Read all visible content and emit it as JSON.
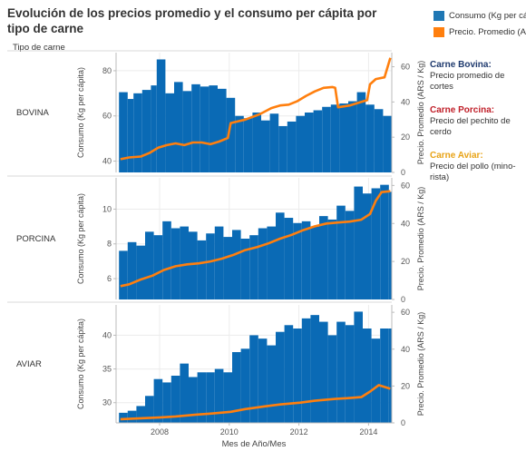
{
  "title": "Evolución de los precios promedio y el consumo per cápita por tipo de carne",
  "row_header": "Tipo de carne",
  "legend": {
    "items": [
      {
        "label": "Consumo (Kg per cá..",
        "color": "#1f77b4"
      },
      {
        "label": "Precio. Promedio (A..",
        "color": "#ff7f0e"
      }
    ]
  },
  "notes": [
    {
      "title": "Carne Bovina:",
      "title_color": "#1f3a6e",
      "text": "Precio promedio de cortes"
    },
    {
      "title": "Carne Porcina:",
      "title_color": "#c0202a",
      "text": "Precio del pechito de cerdo"
    },
    {
      "title": "Carne Aviar:",
      "title_color": "#e8a317",
      "text": "Precio del pollo (mino-rista)"
    }
  ],
  "chart_data": {
    "type": "bar+line",
    "xlabel": "Mes de Año/Mes",
    "x_ticks": [
      "2008",
      "2010",
      "2012",
      "2014"
    ],
    "x_range": [
      "2006-10",
      "2014-08"
    ],
    "y_left_label": "Consumo (Kg per cápita)",
    "y_right_label": "Precio. Promedio (ARS / Kg)",
    "bar_color": "#0a6ab5",
    "line_color": "#ff7f0e",
    "panels": [
      {
        "name": "BOVINA",
        "ylim": [
          35,
          88
        ],
        "y_ticks": [
          40,
          60,
          80
        ],
        "y2lim": [
          0,
          68
        ],
        "y2_ticks": [
          0,
          20,
          40,
          60
        ],
        "consumo": [
          [
            "2006-11",
            70.5
          ],
          [
            "2007-02",
            67.5
          ],
          [
            "2007-04",
            70.0
          ],
          [
            "2007-07",
            71.5
          ],
          [
            "2007-10",
            73.5
          ],
          [
            "2007-12",
            85.0
          ],
          [
            "2008-03",
            70.0
          ],
          [
            "2008-06",
            75.0
          ],
          [
            "2008-09",
            71.0
          ],
          [
            "2008-12",
            74.0
          ],
          [
            "2009-03",
            73.0
          ],
          [
            "2009-06",
            73.5
          ],
          [
            "2009-09",
            72.0
          ],
          [
            "2009-12",
            68.0
          ],
          [
            "2010-03",
            60.0
          ],
          [
            "2010-06",
            59.0
          ],
          [
            "2010-09",
            61.5
          ],
          [
            "2010-12",
            58.0
          ],
          [
            "2011-03",
            61.0
          ],
          [
            "2011-06",
            55.5
          ],
          [
            "2011-09",
            57.5
          ],
          [
            "2011-12",
            60.0
          ],
          [
            "2012-03",
            61.5
          ],
          [
            "2012-06",
            62.5
          ],
          [
            "2012-09",
            64.0
          ],
          [
            "2012-12",
            65.0
          ],
          [
            "2013-03",
            65.5
          ],
          [
            "2013-06",
            66.5
          ],
          [
            "2013-09",
            70.5
          ],
          [
            "2013-12",
            65.0
          ],
          [
            "2014-03",
            63.0
          ],
          [
            "2014-06",
            60.0
          ]
        ],
        "precio": [
          [
            "2006-11",
            7.5
          ],
          [
            "2007-02",
            8.5
          ],
          [
            "2007-06",
            9.0
          ],
          [
            "2007-09",
            11.0
          ],
          [
            "2007-12",
            14.0
          ],
          [
            "2008-03",
            15.5
          ],
          [
            "2008-06",
            16.5
          ],
          [
            "2008-09",
            15.5
          ],
          [
            "2008-12",
            17.0
          ],
          [
            "2009-03",
            17.0
          ],
          [
            "2009-06",
            16.0
          ],
          [
            "2009-09",
            17.5
          ],
          [
            "2009-12",
            19.5
          ],
          [
            "2010-01",
            28.0
          ],
          [
            "2010-06",
            30.0
          ],
          [
            "2010-11",
            33.0
          ],
          [
            "2011-03",
            36.5
          ],
          [
            "2011-06",
            38.0
          ],
          [
            "2011-09",
            38.5
          ],
          [
            "2011-12",
            40.5
          ],
          [
            "2012-03",
            43.5
          ],
          [
            "2012-06",
            46.0
          ],
          [
            "2012-09",
            48.0
          ],
          [
            "2012-12",
            48.5
          ],
          [
            "2013-01",
            48.0
          ],
          [
            "2013-02",
            37.0
          ],
          [
            "2013-06",
            38.0
          ],
          [
            "2013-09",
            39.5
          ],
          [
            "2013-12",
            41.0
          ],
          [
            "2014-01",
            50.0
          ],
          [
            "2014-03",
            53.0
          ],
          [
            "2014-06",
            54.0
          ],
          [
            "2014-08",
            65.0
          ]
        ]
      },
      {
        "name": "PORCINA",
        "ylim": [
          4.8,
          11.8
        ],
        "y_ticks": [
          6,
          8,
          10
        ],
        "y2lim": [
          0,
          64
        ],
        "y2_ticks": [
          0,
          20,
          40,
          60
        ],
        "consumo": [
          [
            "2006-11",
            7.6
          ],
          [
            "2007-02",
            8.1
          ],
          [
            "2007-05",
            7.9
          ],
          [
            "2007-08",
            8.7
          ],
          [
            "2007-11",
            8.5
          ],
          [
            "2008-02",
            9.3
          ],
          [
            "2008-05",
            8.9
          ],
          [
            "2008-08",
            9.0
          ],
          [
            "2008-11",
            8.7
          ],
          [
            "2009-02",
            8.2
          ],
          [
            "2009-05",
            8.6
          ],
          [
            "2009-08",
            9.0
          ],
          [
            "2009-11",
            8.4
          ],
          [
            "2010-02",
            8.8
          ],
          [
            "2010-05",
            8.3
          ],
          [
            "2010-08",
            8.5
          ],
          [
            "2010-11",
            8.9
          ],
          [
            "2011-02",
            9.0
          ],
          [
            "2011-05",
            9.8
          ],
          [
            "2011-08",
            9.5
          ],
          [
            "2011-11",
            9.2
          ],
          [
            "2012-02",
            9.3
          ],
          [
            "2012-05",
            9.0
          ],
          [
            "2012-08",
            9.6
          ],
          [
            "2012-11",
            9.4
          ],
          [
            "2013-02",
            10.2
          ],
          [
            "2013-05",
            9.9
          ],
          [
            "2013-08",
            11.3
          ],
          [
            "2013-11",
            10.9
          ],
          [
            "2014-02",
            11.2
          ],
          [
            "2014-05",
            11.4
          ],
          [
            "2014-08",
            11.0
          ]
        ],
        "precio": [
          [
            "2006-11",
            7.0
          ],
          [
            "2007-02",
            8.0
          ],
          [
            "2007-06",
            10.5
          ],
          [
            "2007-10",
            12.5
          ],
          [
            "2008-02",
            15.5
          ],
          [
            "2008-06",
            17.5
          ],
          [
            "2008-10",
            18.5
          ],
          [
            "2009-02",
            19.0
          ],
          [
            "2009-06",
            20.0
          ],
          [
            "2009-10",
            21.5
          ],
          [
            "2010-02",
            23.5
          ],
          [
            "2010-06",
            26.0
          ],
          [
            "2010-10",
            27.5
          ],
          [
            "2011-02",
            29.5
          ],
          [
            "2011-06",
            32.0
          ],
          [
            "2011-10",
            34.0
          ],
          [
            "2012-02",
            36.5
          ],
          [
            "2012-06",
            38.5
          ],
          [
            "2012-10",
            40.0
          ],
          [
            "2013-02",
            40.5
          ],
          [
            "2013-06",
            41.0
          ],
          [
            "2013-10",
            42.0
          ],
          [
            "2014-01",
            45.0
          ],
          [
            "2014-03",
            52.0
          ],
          [
            "2014-05",
            56.5
          ],
          [
            "2014-08",
            57.0
          ]
        ]
      },
      {
        "name": "AVIAR",
        "ylim": [
          27,
          44.5
        ],
        "y_ticks": [
          30,
          35,
          40
        ],
        "y2lim": [
          0,
          64
        ],
        "y2_ticks": [
          0,
          20,
          40,
          60
        ],
        "consumo": [
          [
            "2006-11",
            28.5
          ],
          [
            "2007-02",
            28.8
          ],
          [
            "2007-05",
            29.5
          ],
          [
            "2007-08",
            31.0
          ],
          [
            "2007-11",
            33.5
          ],
          [
            "2008-02",
            33.0
          ],
          [
            "2008-05",
            34.0
          ],
          [
            "2008-08",
            35.8
          ],
          [
            "2008-11",
            33.8
          ],
          [
            "2009-02",
            34.5
          ],
          [
            "2009-05",
            34.5
          ],
          [
            "2009-08",
            35.0
          ],
          [
            "2009-11",
            34.5
          ],
          [
            "2010-02",
            37.5
          ],
          [
            "2010-05",
            38.0
          ],
          [
            "2010-08",
            40.0
          ],
          [
            "2010-11",
            39.5
          ],
          [
            "2011-02",
            38.5
          ],
          [
            "2011-05",
            40.5
          ],
          [
            "2011-08",
            41.5
          ],
          [
            "2011-11",
            41.0
          ],
          [
            "2012-02",
            42.5
          ],
          [
            "2012-05",
            43.0
          ],
          [
            "2012-08",
            42.0
          ],
          [
            "2012-11",
            40.0
          ],
          [
            "2013-02",
            42.0
          ],
          [
            "2013-05",
            41.5
          ],
          [
            "2013-08",
            43.5
          ],
          [
            "2013-11",
            41.0
          ],
          [
            "2014-02",
            39.5
          ],
          [
            "2014-05",
            41.0
          ],
          [
            "2014-08",
            41.0
          ]
        ],
        "precio": [
          [
            "2006-11",
            2.0
          ],
          [
            "2007-06",
            2.5
          ],
          [
            "2008-01",
            3.0
          ],
          [
            "2008-06",
            3.5
          ],
          [
            "2009-01",
            4.5
          ],
          [
            "2009-06",
            5.0
          ],
          [
            "2010-01",
            6.0
          ],
          [
            "2010-06",
            7.5
          ],
          [
            "2011-01",
            9.0
          ],
          [
            "2011-06",
            10.0
          ],
          [
            "2012-01",
            11.0
          ],
          [
            "2012-06",
            12.0
          ],
          [
            "2013-01",
            13.0
          ],
          [
            "2013-06",
            13.5
          ],
          [
            "2013-10",
            14.0
          ],
          [
            "2014-01",
            17.0
          ],
          [
            "2014-04",
            20.5
          ],
          [
            "2014-06",
            19.5
          ],
          [
            "2014-08",
            18.5
          ]
        ]
      }
    ]
  }
}
